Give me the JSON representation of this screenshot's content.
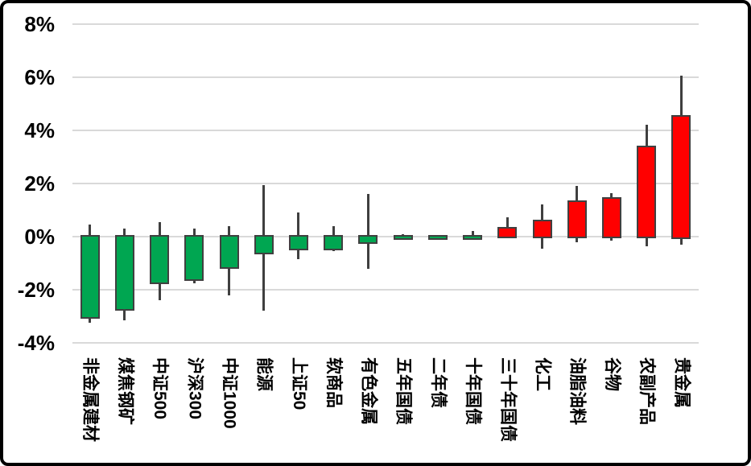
{
  "chart_data": {
    "type": "candlestick",
    "title": "",
    "xlabel": "",
    "ylabel": "",
    "legend": "none",
    "grid": true,
    "ylim": [
      -4,
      8
    ],
    "yticks": [
      {
        "label": "8%",
        "value": 8
      },
      {
        "label": "6%",
        "value": 6
      },
      {
        "label": "4%",
        "value": 4
      },
      {
        "label": "2%",
        "value": 2
      },
      {
        "label": "0%",
        "value": 0
      },
      {
        "label": "-2%",
        "value": -2
      },
      {
        "label": "-4%",
        "value": -4
      }
    ],
    "categories": [
      "非金属建材",
      "煤焦钢矿",
      "中证500",
      "沪深300",
      "中证1000",
      "能源",
      "上证50",
      "软商品",
      "有色金属",
      "五年国债",
      "二年债",
      "十年国债",
      "三十年国债",
      "化工",
      "油脂油料",
      "谷物",
      "农副产品",
      "贵金属"
    ],
    "candles": [
      {
        "label": "非金属建材",
        "open": 0,
        "high": 0.45,
        "low": -3.25,
        "close": -3.0
      },
      {
        "label": "煤焦钢矿",
        "open": 0,
        "high": 0.3,
        "low": -3.15,
        "close": -2.7
      },
      {
        "label": "中证500",
        "open": 0,
        "high": 0.55,
        "low": -2.4,
        "close": -1.7
      },
      {
        "label": "沪深300",
        "open": 0,
        "high": 0.3,
        "low": -1.75,
        "close": -1.6
      },
      {
        "label": "中证1000",
        "open": 0,
        "high": 0.4,
        "low": -2.2,
        "close": -1.15
      },
      {
        "label": "能源",
        "open": 0,
        "high": 1.95,
        "low": -2.8,
        "close": -0.6
      },
      {
        "label": "上证50",
        "open": 0,
        "high": 0.9,
        "low": -0.85,
        "close": -0.45
      },
      {
        "label": "软商品",
        "open": 0,
        "high": 0.4,
        "low": -0.55,
        "close": -0.45
      },
      {
        "label": "有色金属",
        "open": 0,
        "high": 1.6,
        "low": -1.2,
        "close": -0.2
      },
      {
        "label": "五年国债",
        "open": 0,
        "high": 0.1,
        "low": -0.08,
        "close": -0.05
      },
      {
        "label": "二年债",
        "open": 0,
        "high": 0.02,
        "low": -0.06,
        "close": -0.04
      },
      {
        "label": "十年国债",
        "open": 0,
        "high": 0.2,
        "low": -0.06,
        "close": -0.04
      },
      {
        "label": "三十年国债",
        "open": 0,
        "high": 0.73,
        "low": -0.05,
        "close": 0.3
      },
      {
        "label": "化工",
        "open": 0,
        "high": 1.2,
        "low": -0.45,
        "close": 0.55
      },
      {
        "label": "油脂油料",
        "open": 0,
        "high": 1.9,
        "low": -0.2,
        "close": 1.3
      },
      {
        "label": "谷物",
        "open": 0,
        "high": 1.65,
        "low": -0.15,
        "close": 1.4
      },
      {
        "label": "农副产品",
        "open": 0,
        "high": 4.2,
        "low": -0.35,
        "close": 3.35
      },
      {
        "label": "贵金属",
        "open": 0,
        "high": 6.05,
        "low": -0.3,
        "close": 4.5
      }
    ],
    "colors": {
      "up": "#FF0000",
      "down": "#00A651",
      "wick": "#3F3F3F",
      "body_border": "#404040",
      "gridline": "#D9D9D9",
      "text": "#000000",
      "background": "#FFFFFF",
      "frame_border": "#000000"
    }
  }
}
